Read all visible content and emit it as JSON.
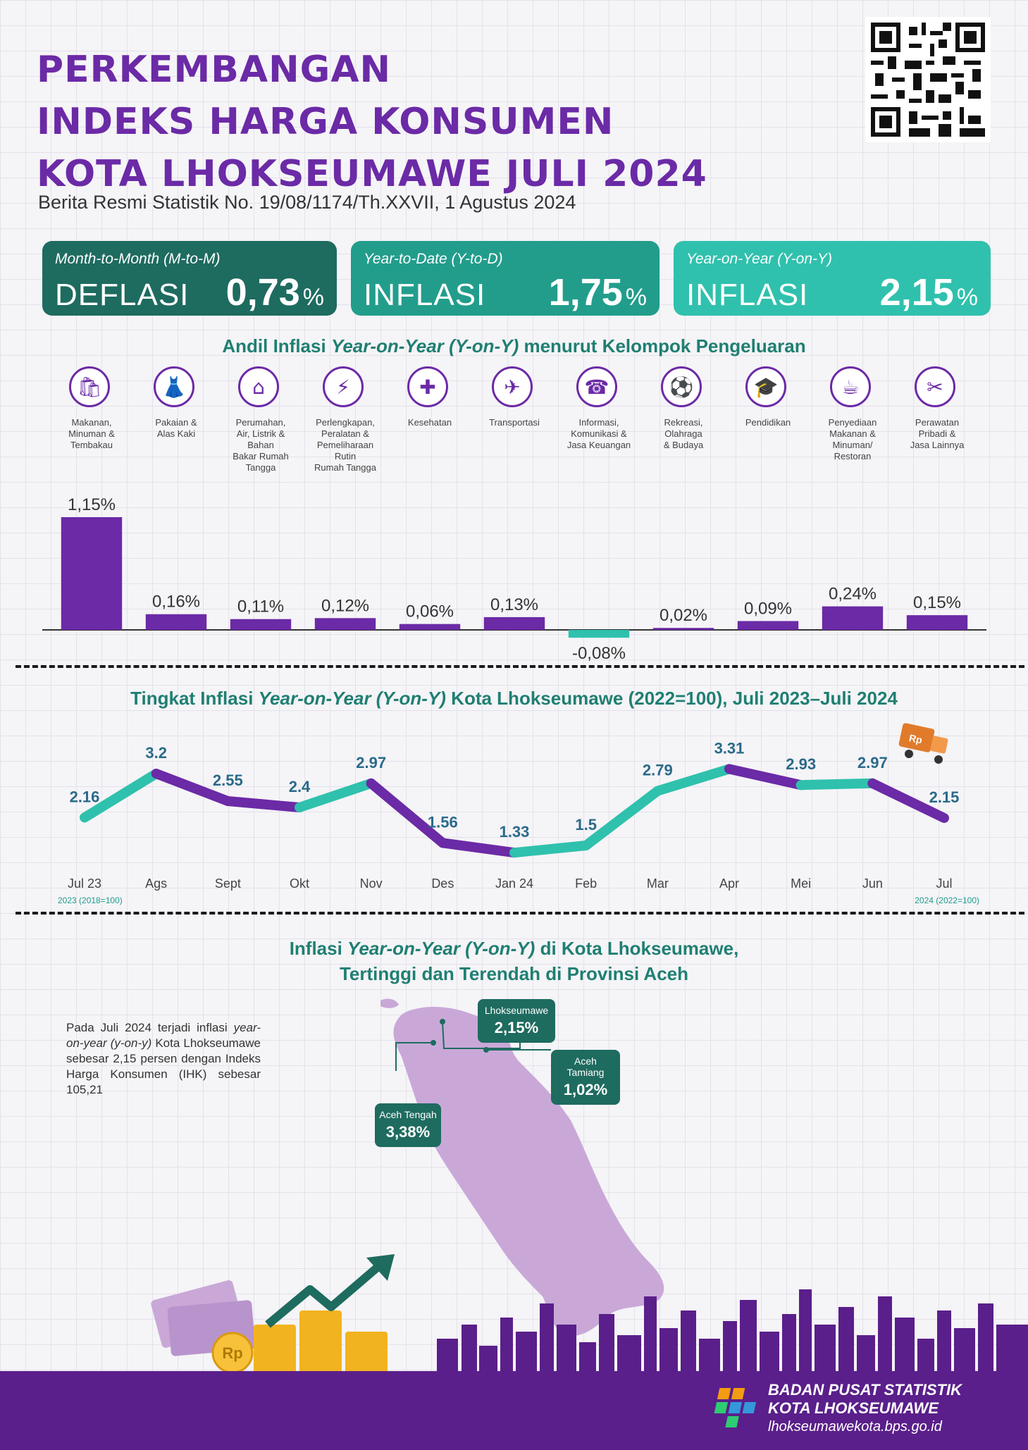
{
  "header": {
    "title_lines": [
      "PERKEMBANGAN",
      "INDEKS HARGA KONSUMEN",
      "KOTA LHOKSEUMAWE JULI 2024"
    ],
    "subtitle": "Berita Resmi Statistik No. 19/08/1174/Th.XXVII, 1 Agustus 2024"
  },
  "summary": {
    "mtm": {
      "label": "Month-to-Month (M-to-M)",
      "kind": "DEFLASI",
      "value": "0,73",
      "unit": "%"
    },
    "ytd": {
      "label": "Year-to-Date (Y-to-D)",
      "kind": "INFLASI",
      "value": "1,75",
      "unit": "%"
    },
    "yoy": {
      "label": "Year-on-Year (Y-on-Y)",
      "kind": "INFLASI",
      "value": "2,15",
      "unit": "%"
    }
  },
  "sections": {
    "bar_title_a": "Andil Inflasi ",
    "bar_title_b": "Year-on-Year (Y-on-Y)",
    "bar_title_c": " menurut Kelompok Pengeluaran",
    "line_title_a": "Tingkat Inflasi ",
    "line_title_b": "Year-on-Year (Y-on-Y)",
    "line_title_c": " Kota Lhokseumawe (2022=100), Juli 2023–Juli 2024",
    "map_title_a": "Inflasi ",
    "map_title_b": "Year-on-Year (Y-on-Y)",
    "map_title_c": " di Kota Lhokseumawe,",
    "map_title_line2": "Tertinggi dan Terendah di Provinsi Aceh"
  },
  "chart_data": [
    {
      "type": "bar",
      "categories": [
        "Makanan, Minuman & Tembakau",
        "Pakaian & Alas Kaki",
        "Perumahan, Air, Listrik & Bahan Bakar Rumah Tangga",
        "Perlengkapan, Peralatan & Pemeliharaan Rutin Rumah Tangga",
        "Kesehatan",
        "Transportasi",
        "Informasi, Komunikasi & Jasa Keuangan",
        "Rekreasi, Olahraga & Budaya",
        "Pendidikan",
        "Penyediaan Makanan & Minuman/ Restoran",
        "Perawatan Pribadi & Jasa Lainnya"
      ],
      "category_lines": [
        [
          "Makanan,",
          "Minuman &",
          "Tembakau"
        ],
        [
          "Pakaian &",
          "Alas Kaki"
        ],
        [
          "Perumahan,",
          "Air, Listrik &",
          "Bahan",
          "Bakar Rumah",
          "Tangga"
        ],
        [
          "Perlengkapan,",
          "Peralatan &",
          "Pemeliharaan",
          "Rutin",
          "Rumah Tangga"
        ],
        [
          "Kesehatan"
        ],
        [
          "Transportasi"
        ],
        [
          "Informasi,",
          "Komunikasi &",
          "Jasa Keuangan"
        ],
        [
          "Rekreasi,",
          "Olahraga",
          "& Budaya"
        ],
        [
          "Pendidikan"
        ],
        [
          "Penyediaan",
          "Makanan &",
          "Minuman/",
          "Restoran"
        ],
        [
          "Perawatan",
          "Pribadi &",
          "Jasa Lainnya"
        ]
      ],
      "icons": [
        "grocery-bag-icon",
        "dress-icon",
        "house-icon",
        "plug-icon",
        "medicine-icon",
        "airplane-icon",
        "smartphone-icon",
        "football-player-icon",
        "graduation-cap-icon",
        "restaurant-icon",
        "scissors-comb-icon"
      ],
      "values": [
        1.15,
        0.16,
        0.11,
        0.12,
        0.06,
        0.13,
        -0.08,
        0.02,
        0.09,
        0.24,
        0.15
      ],
      "value_labels": [
        "1,15%",
        "0,16%",
        "0,11%",
        "0,12%",
        "0,06%",
        "0,13%",
        "-0,08%",
        "0,02%",
        "0,09%",
        "0,24%",
        "0,15%"
      ],
      "colors": {
        "positive": "#6b2aa6",
        "negative": "#2fc1ad"
      }
    },
    {
      "type": "line",
      "x": [
        "Jul 23",
        "Ags",
        "Sept",
        "Okt",
        "Nov",
        "Des",
        "Jan 24",
        "Feb",
        "Mar",
        "Apr",
        "Mei",
        "Jun",
        "Jul"
      ],
      "values": [
        2.16,
        3.2,
        2.55,
        2.4,
        2.97,
        1.56,
        1.33,
        1.5,
        2.79,
        3.31,
        2.93,
        2.97,
        2.15
      ],
      "value_labels": [
        "2.16",
        "3.2",
        "2.55",
        "2.4",
        "2.97",
        "1.56",
        "1.33",
        "1.5",
        "2.79",
        "3.31",
        "2.93",
        "2.97",
        "2.15"
      ],
      "notes": {
        "left": "2023 (2018=100)",
        "right": "2024 (2022=100)"
      },
      "colors": {
        "up": "#2fc1ad",
        "down": "#6b2aa6",
        "label": "#2a6a8a"
      }
    }
  ],
  "map": {
    "description_a": "Pada Juli 2024 terjadi inflasi ",
    "description_b": "year-on-year (y-on-y)",
    "description_c": " Kota Lhokseumawe sebesar 2,15 persen dengan Indeks Harga Konsumen (IHK) sebesar 105,21",
    "callouts": [
      {
        "name": "Lhokseumawe",
        "value": "2,15%"
      },
      {
        "name": "Aceh Tamiang",
        "value": "1,02%"
      },
      {
        "name": "Aceh Tengah",
        "value": "3,38%"
      }
    ],
    "colors": {
      "land": "#c9a8d8",
      "callout": "#1e6b5f"
    }
  },
  "footer": {
    "org_line1": "BADAN PUSAT STATISTIK",
    "org_line2": "KOTA LHOKSEUMAWE",
    "url": "lhokseumawekota.bps.go.id"
  },
  "decor": {
    "truck_label": "Rp",
    "coin_label": "Rp"
  }
}
